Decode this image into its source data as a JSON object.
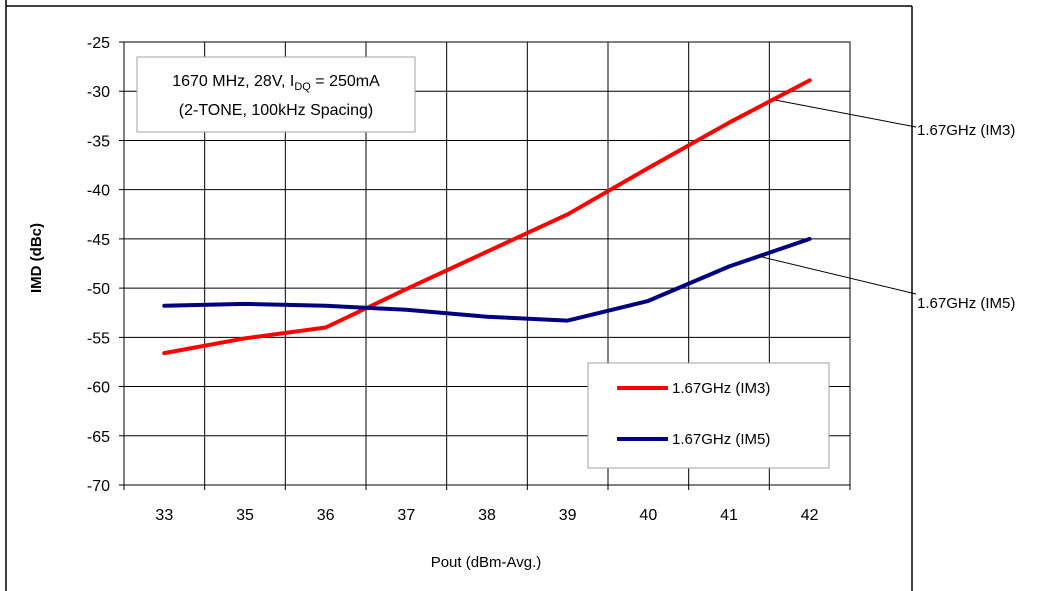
{
  "chart_data": {
    "type": "line",
    "x": [
      33,
      35,
      36,
      37,
      38,
      39,
      40,
      41,
      42
    ],
    "x_tick_labels": [
      "33",
      "35",
      "36",
      "37",
      "38",
      "39",
      "40",
      "41",
      "42"
    ],
    "xlabel": "Pout (dBm-Avg.)",
    "ylabel": "IMD (dBc)",
    "ylim": [
      -70,
      -25
    ],
    "y_ticks": [
      -25,
      -30,
      -35,
      -40,
      -45,
      -50,
      -55,
      -60,
      -65,
      -70
    ],
    "grid": true,
    "annotation": {
      "line1": "1670 MHz, 28V, I",
      "line1_sub": "DQ",
      "line1_tail": " = 250mA",
      "line2": "(2-TONE, 100kHz Spacing)"
    },
    "legend_position": "bottom-right",
    "series": [
      {
        "name": "1.67GHz (IM3)",
        "color": "#ff0000",
        "values": [
          -56.6,
          -55.1,
          -54.0,
          -50.1,
          -46.3,
          -42.5,
          -37.8,
          -33.2,
          -28.9
        ],
        "callout_label": "1.67GHz (IM3)"
      },
      {
        "name": "1.67GHz (IM5)",
        "color": "#000080",
        "values": [
          -51.8,
          -51.6,
          -51.8,
          -52.2,
          -52.9,
          -53.3,
          -51.3,
          -47.8,
          -45.0
        ],
        "callout_label": "1.67GHz (IM5)"
      }
    ]
  }
}
